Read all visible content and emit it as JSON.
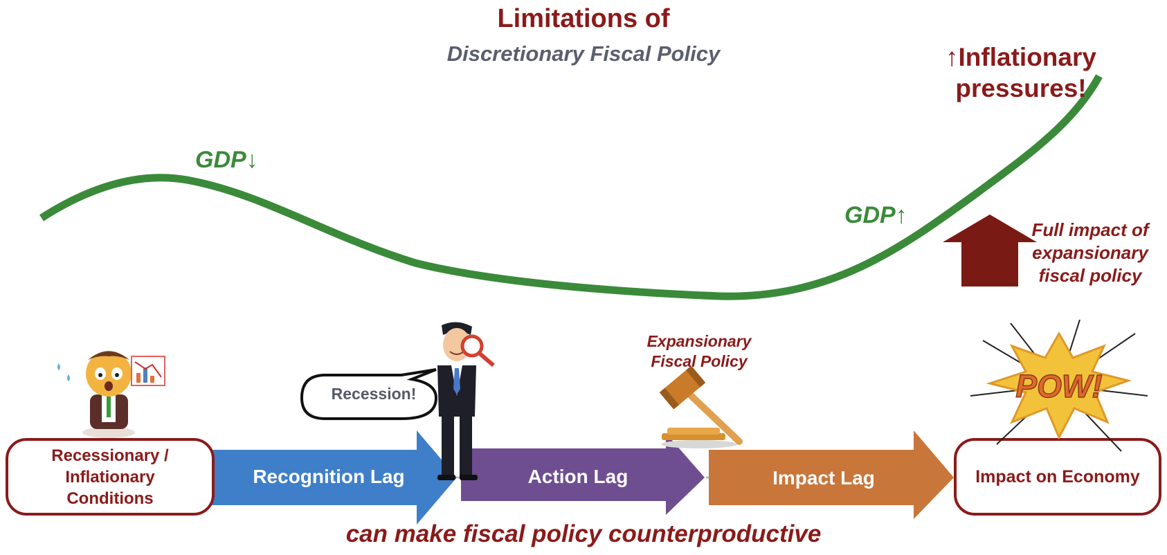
{
  "title": "Limitations of",
  "subtitle": "Discretionary Fiscal Policy",
  "curve": {
    "gdp_down_label": "GDP↓",
    "gdp_up_label": "GDP↑",
    "color": "#3a8a3a"
  },
  "inflation_label": "↑Inflationary pressures!",
  "full_impact_label": "Full impact of expansionary fiscal policy",
  "stages": {
    "start_box": "Recessionary / Inflationary Conditions",
    "recognition_lag": "Recognition Lag",
    "action_lag": "Action Lag",
    "impact_lag": "Impact Lag",
    "end_box": "Impact on Economy"
  },
  "speech_bubble": "Recession!",
  "policy_label": "Expansionary Fiscal Policy",
  "pow_text": "POW!",
  "bottom_caption": "can make fiscal policy counterproductive",
  "colors": {
    "dark_red": "#8b1a1a",
    "recognition_blue": "#3f7fc9",
    "action_purple": "#6e4e91",
    "impact_orange": "#c8763a",
    "up_arrow": "#7a1a14"
  }
}
